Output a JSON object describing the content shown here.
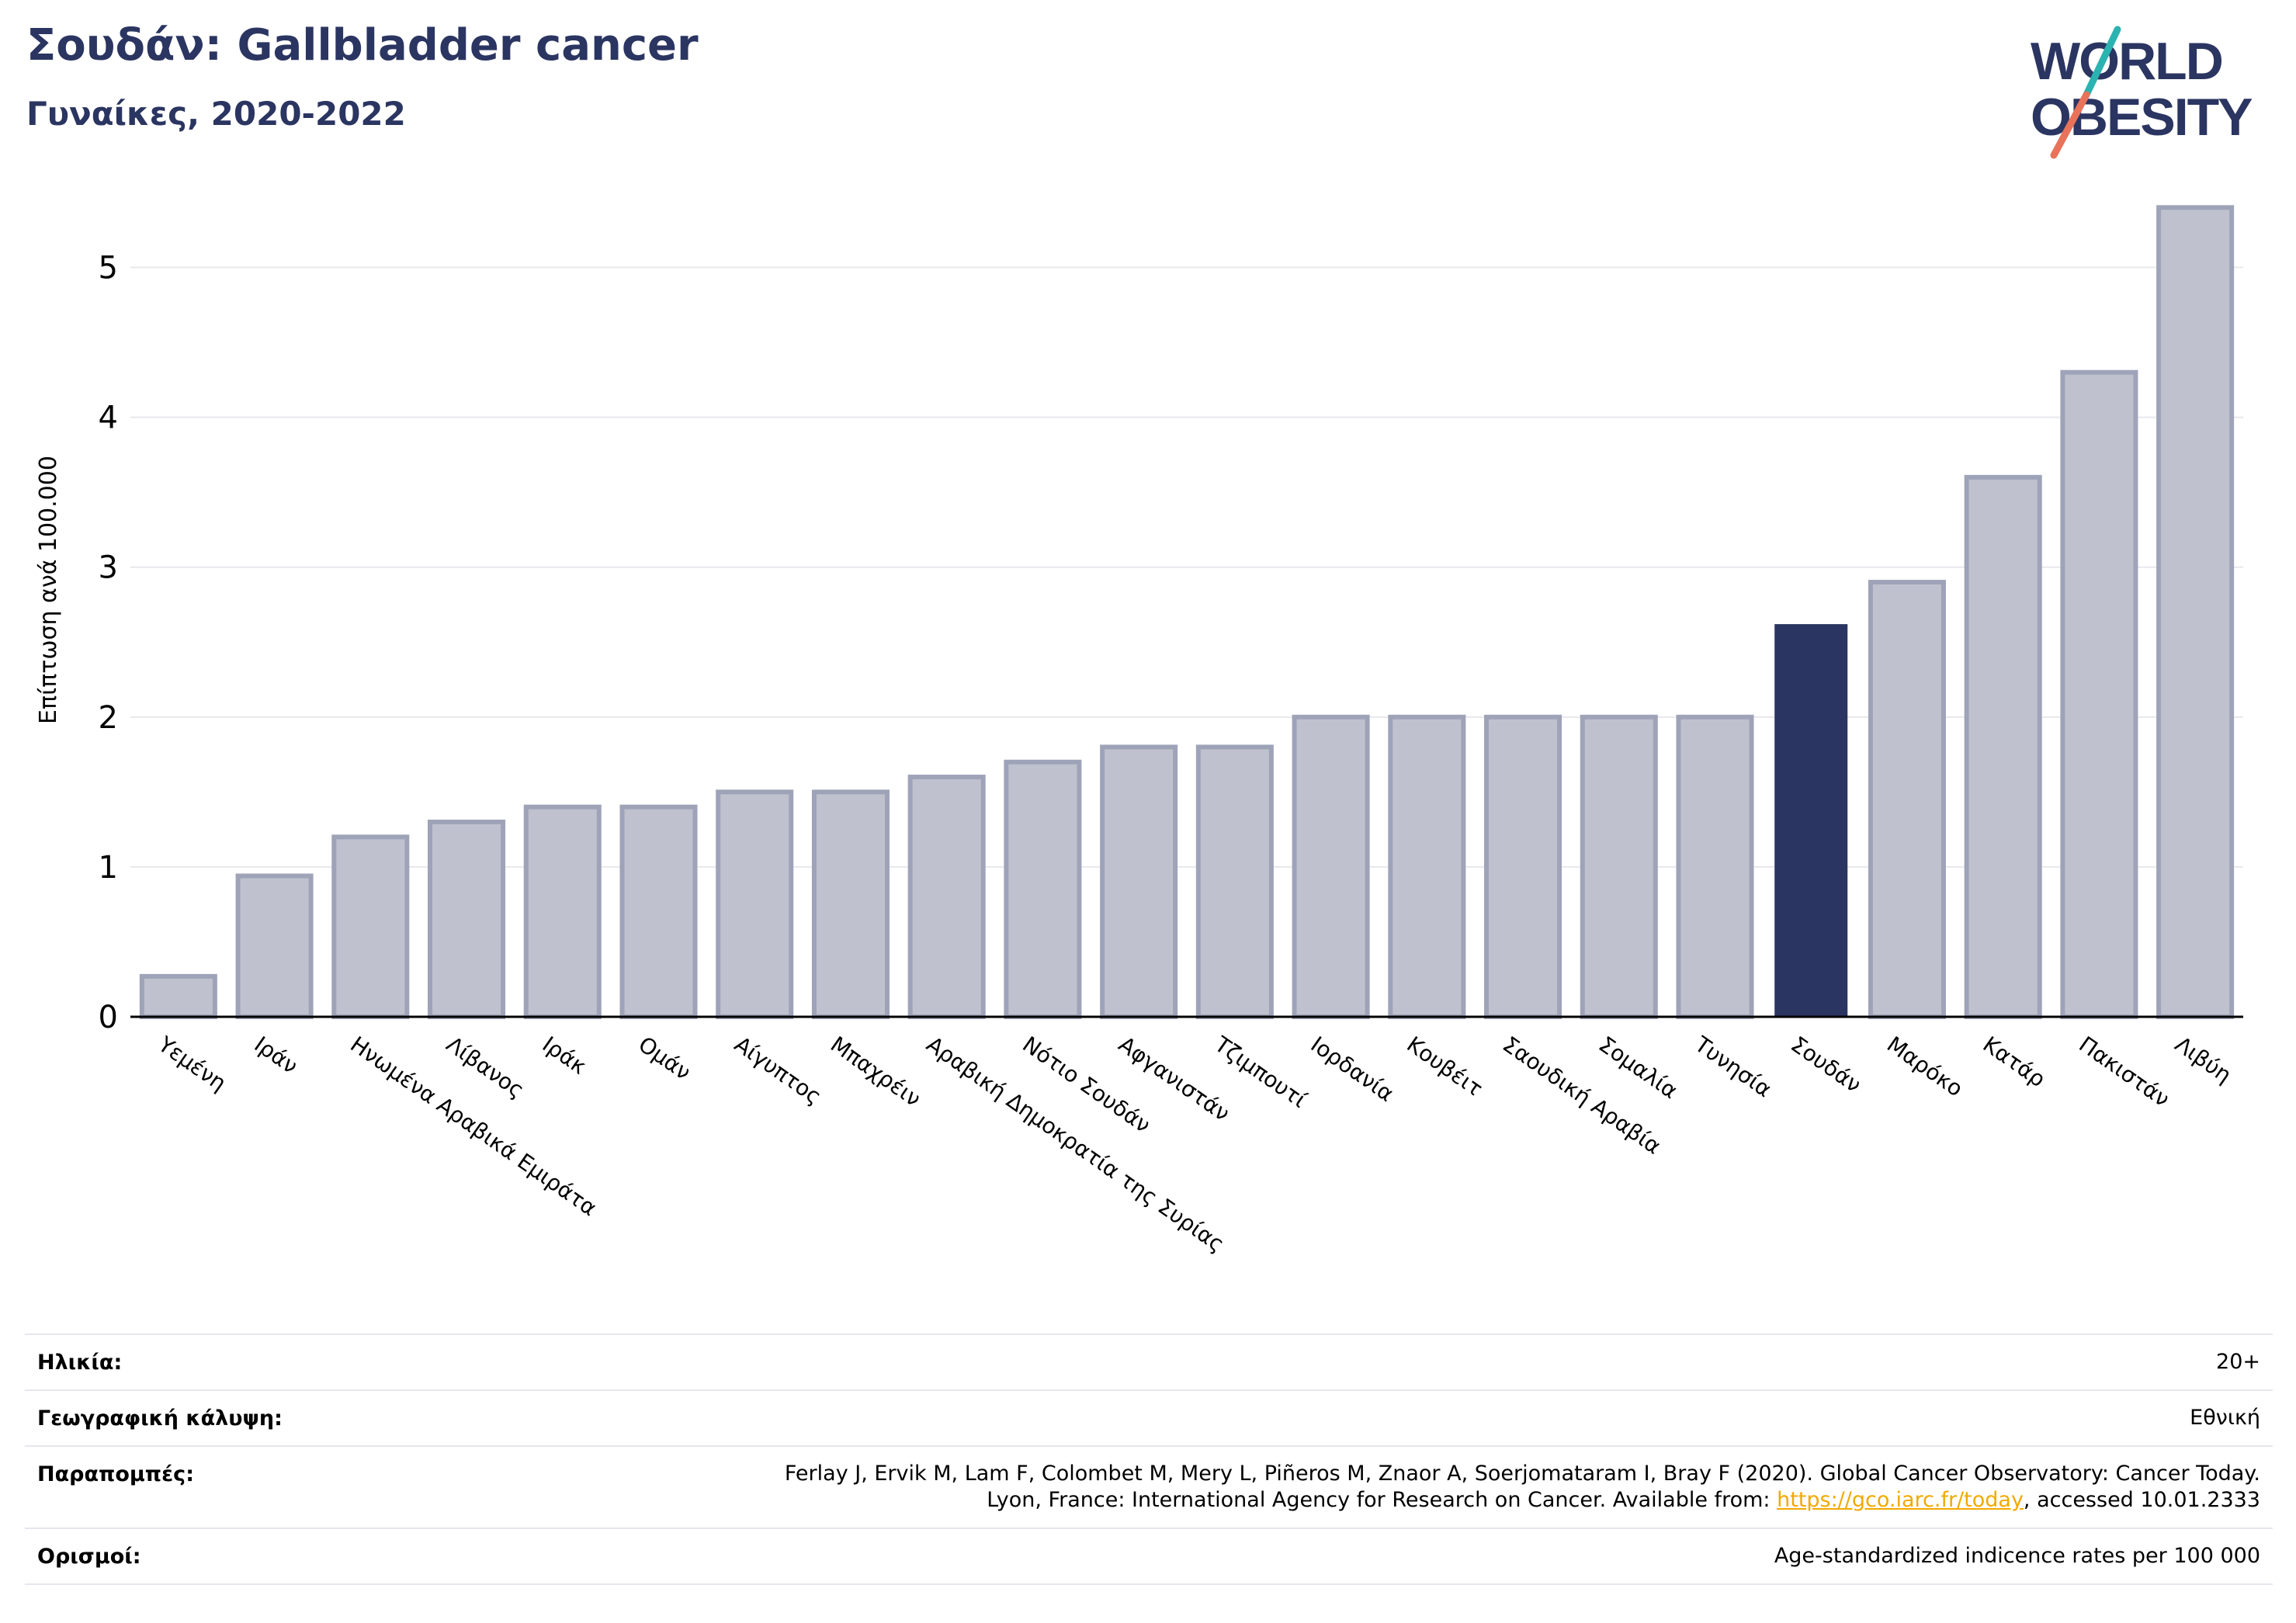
{
  "header": {
    "title": "Σουδάν: Gallbladder cancer",
    "subtitle": "Γυναίκες, 2020-2022"
  },
  "logo": {
    "line1": "WORLD",
    "line2": "OBESITY",
    "colors": {
      "text": "#2b3561",
      "slash_top": "#2ab3b1",
      "slash_bottom": "#e8735a"
    }
  },
  "chart_data": {
    "type": "bar",
    "ylabel": "Επίπτωση ανά 100.000",
    "ylim": [
      0,
      5.5
    ],
    "yticks": [
      0,
      1,
      2,
      3,
      4,
      5
    ],
    "grid": true,
    "highlight": "Σουδάν",
    "colors": {
      "bar": "#bfc2ce",
      "bar_edge": "#9ea3b8",
      "highlight": "#2b3561",
      "grid": "#e8e8ee"
    },
    "categories": [
      "Υεμένη",
      "Ιράν",
      "Ηνωμένα Αραβικά Εμιράτα",
      "Λίβανος",
      "Ιράκ",
      "Ομάν",
      "Αίγυπτος",
      "Μπαχρέιν",
      "Αραβική Δημοκρατία της Συρίας",
      "Νότιο Σουδάν",
      "Αφγανιστάν",
      "Τζιμπουτί",
      "Ιορδανία",
      "Κουβέιτ",
      "Σαουδική Αραβία",
      "Σομαλία",
      "Τυνησία",
      "Σουδάν",
      "Μαρόκο",
      "Κατάρ",
      "Πακιστάν",
      "Λιβύη"
    ],
    "values": [
      0.27,
      0.94,
      1.2,
      1.3,
      1.4,
      1.4,
      1.5,
      1.5,
      1.6,
      1.7,
      1.8,
      1.8,
      2.0,
      2.0,
      2.0,
      2.0,
      2.0,
      2.62,
      2.9,
      3.6,
      4.3,
      5.4
    ]
  },
  "meta": [
    {
      "label": "Ηλικία:",
      "value": "20+"
    },
    {
      "label": "Γεωγραφική κάλυψη:",
      "value": "Εθνική"
    },
    {
      "label": "Παραπομπές:",
      "value_line1": "Ferlay J, Ervik M, Lam F, Colombet M, Mery L, Piñeros M, Znaor A, Soerjomataram I, Bray F (2020). Global Cancer Observatory: Cancer Today.",
      "value_line2_pre": "Lyon, France: International Agency for Research on Cancer. Available from: ",
      "link": "https://gco.iarc.fr/today",
      "value_line2_post": ", accessed 10.01.2333"
    },
    {
      "label": "Ορισμοί:",
      "value": "Age-standardized indicence rates per 100 000"
    }
  ]
}
